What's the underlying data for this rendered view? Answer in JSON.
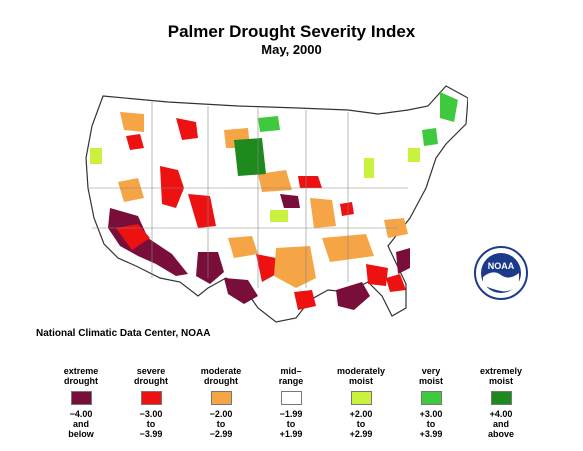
{
  "title": "Palmer Drought Severity Index",
  "subtitle": "May, 2000",
  "credit": "National Climatic Data Center, NOAA",
  "logo": {
    "text": "NOAA",
    "icon": "noaa-logo-icon"
  },
  "colors": {
    "extreme_drought": "#7a0e3a",
    "severe_drought": "#ee1111",
    "moderate_drought": "#f5a446",
    "mid_range": "#ffffff",
    "moderately_moist": "#c8f23d",
    "very_moist": "#3ec93e",
    "extremely_moist": "#1e8a1e"
  },
  "legend": [
    {
      "top1": "extreme",
      "top2": "drought",
      "bot1": "−4.00",
      "bot2": "and",
      "bot3": "below",
      "color": "#7a0e3a"
    },
    {
      "top1": "severe",
      "top2": "drought",
      "bot1": "−3.00",
      "bot2": "to",
      "bot3": "−3.99",
      "color": "#ee1111"
    },
    {
      "top1": "moderate",
      "top2": "drought",
      "bot1": "−2.00",
      "bot2": "to",
      "bot3": "−2.99",
      "color": "#f5a446"
    },
    {
      "top1": "mid–",
      "top2": "range",
      "bot1": "−1.99",
      "bot2": "to",
      "bot3": "+1.99",
      "color": "#ffffff"
    },
    {
      "top1": "moderately",
      "top2": "moist",
      "bot1": "+2.00",
      "bot2": "to",
      "bot3": "+2.99",
      "color": "#c8f23d"
    },
    {
      "top1": "very",
      "top2": "moist",
      "bot1": "+3.00",
      "bot2": "to",
      "bot3": "+3.99",
      "color": "#3ec93e"
    },
    {
      "top1": "extremely",
      "top2": "moist",
      "bot1": "+4.00",
      "bot2": "and",
      "bot3": "above",
      "color": "#1e8a1e"
    }
  ]
}
